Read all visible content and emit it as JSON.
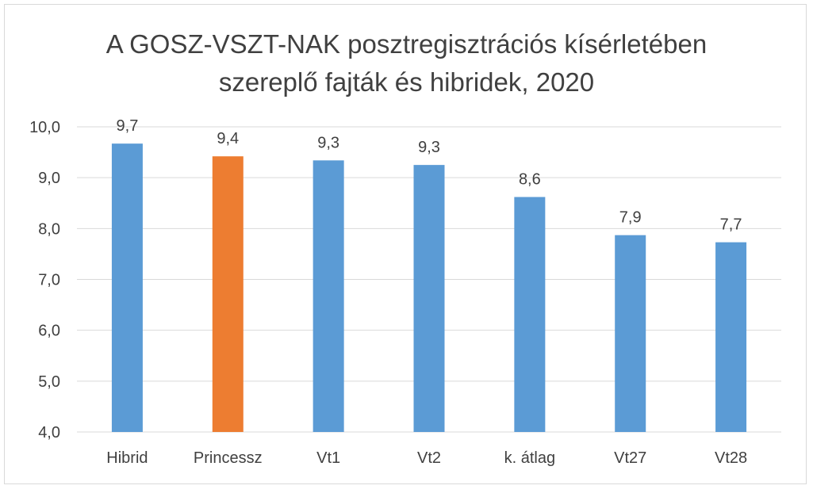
{
  "chart_data": {
    "type": "bar",
    "title_lines": [
      "A GOSZ-VSZT-NAK posztregisztrációs kísérletében",
      "szereplő fajták és hibridek, 2020"
    ],
    "categories": [
      "Hibrid",
      "Princessz",
      "Vt1",
      "Vt2",
      "k. átlag",
      "Vt27",
      "Vt28"
    ],
    "values": [
      9.67,
      9.42,
      9.34,
      9.25,
      8.62,
      7.87,
      7.73
    ],
    "labels": [
      "9,7",
      "9,4",
      "9,3",
      "9,3",
      "8,6",
      "7,9",
      "7,7"
    ],
    "y_ticks": [
      "4,0",
      "5,0",
      "6,0",
      "7,0",
      "8,0",
      "9,0",
      "10,0"
    ],
    "ylim": [
      4,
      10
    ],
    "grid": true,
    "colors": {
      "default": "#5b9bd5",
      "highlight": "#ed7d31",
      "grid": "#d9d9d9",
      "text": "#404040"
    },
    "highlight_index": 1
  }
}
